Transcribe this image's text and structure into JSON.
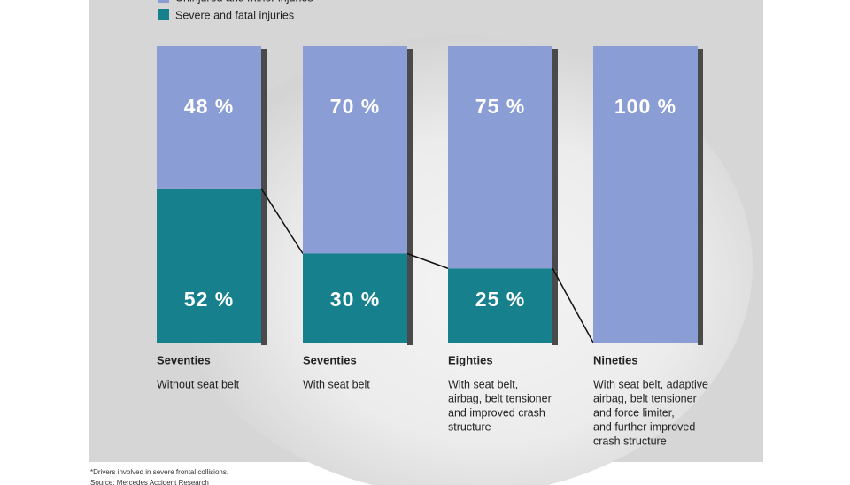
{
  "chart_data": {
    "type": "stacked-bar",
    "categories": [
      "Seventies",
      "Seventies",
      "Eighties",
      "Nineties"
    ],
    "descriptions": [
      [
        "Without seat belt"
      ],
      [
        "With seat belt"
      ],
      [
        "With seat belt,",
        "airbag, belt tensioner",
        "and improved crash",
        "structure"
      ],
      [
        "With seat belt, adaptive",
        "airbag, belt tensioner",
        "and force limiter,",
        "and further improved",
        "crash structure"
      ]
    ],
    "series": [
      {
        "name": "Severe and fatal injuries",
        "color": "#17808d",
        "values": [
          52,
          30,
          25,
          0
        ],
        "value_labels": [
          "52 %",
          "30 %",
          "25 %",
          null
        ]
      },
      {
        "name": "Uninjured and minor injuries",
        "color": "#8a9dd4",
        "values": [
          48,
          70,
          75,
          100
        ],
        "value_labels": [
          "48 %",
          "70 %",
          "75 %",
          "100 %"
        ]
      }
    ],
    "ylim": [
      0,
      100
    ],
    "footnotes": [
      "*Drivers involved in severe frontal collisions.",
      "Source: Mercedes Accident Research"
    ]
  }
}
